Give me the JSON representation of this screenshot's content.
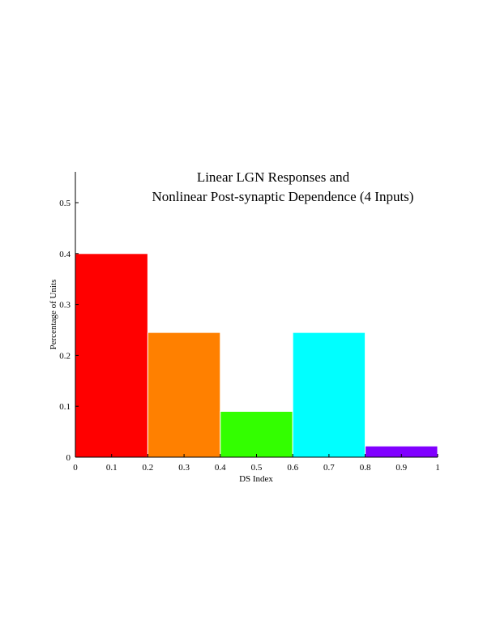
{
  "chart_data": {
    "type": "bar",
    "title_lines": [
      "Linear LGN Responses and",
      "Nonlinear Post-synaptic Dependence (4 Inputs)"
    ],
    "xlabel": "DS Index",
    "ylabel": "Percentage of Units",
    "bins": [
      {
        "x0": 0.0,
        "x1": 0.2,
        "value": 0.4,
        "color": "#ff0000"
      },
      {
        "x0": 0.2,
        "x1": 0.4,
        "value": 0.245,
        "color": "#ff8000"
      },
      {
        "x0": 0.4,
        "x1": 0.6,
        "value": 0.09,
        "color": "#33ff00"
      },
      {
        "x0": 0.6,
        "x1": 0.8,
        "value": 0.245,
        "color": "#00ffff"
      },
      {
        "x0": 0.8,
        "x1": 1.0,
        "value": 0.022,
        "color": "#8000ff"
      }
    ],
    "xlim": [
      0,
      1
    ],
    "ylim": [
      0,
      0.56
    ],
    "x_ticks": [
      0,
      0.1,
      0.2,
      0.3,
      0.4,
      0.5,
      0.6,
      0.7,
      0.8,
      0.9,
      1
    ],
    "x_tick_labels": [
      "0",
      "0.1",
      "0.2",
      "0.3",
      "0.4",
      "0.5",
      "0.6",
      "0.7",
      "0.8",
      "0.9",
      "1"
    ],
    "y_ticks": [
      0,
      0.1,
      0.2,
      0.3,
      0.4,
      0.5
    ],
    "y_tick_labels": [
      "0",
      "0.1",
      "0.2",
      "0.3",
      "0.4",
      "0.5"
    ],
    "grid": false
  }
}
